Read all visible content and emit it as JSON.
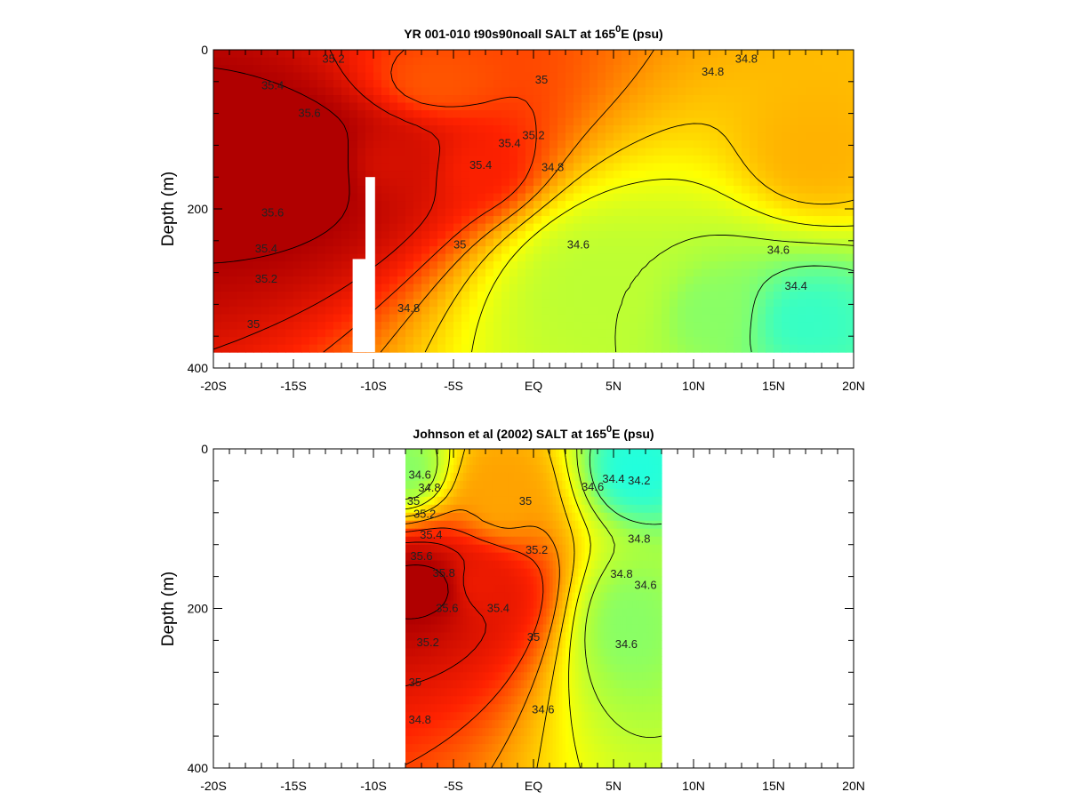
{
  "figure": {
    "colors": {
      "colormap": [
        "#22ffdd",
        "#a6ff44",
        "#ffff00",
        "#ffa000",
        "#ff2200",
        "#b00000"
      ],
      "contour": "#000000",
      "missing": "#ffffff"
    }
  },
  "chart_data": [
    {
      "type": "heatmap",
      "title_main": "YR 001-010 t90s90noall SALT at 165",
      "title_sup": "0",
      "title_end": "E (psu)",
      "xlabel": "",
      "ylabel": "Depth (m)",
      "xlim": [
        -20,
        20
      ],
      "ylim": [
        400,
        0
      ],
      "x_ticks": [
        -20,
        -15,
        -10,
        -5,
        0,
        5,
        10,
        15,
        20
      ],
      "x_tick_labels": [
        "-20S",
        "-15S",
        "-10S",
        "-5S",
        "EQ",
        "5N",
        "10N",
        "15N",
        "20N"
      ],
      "y_ticks": [
        0,
        200,
        400
      ],
      "y_tick_labels": [
        "0",
        "200",
        "400"
      ],
      "colorscale_range_psu": [
        34.2,
        35.8
      ],
      "data_extent": {
        "lat": [
          -20,
          20
        ],
        "depth": [
          0,
          380
        ]
      },
      "missing_regions": [
        {
          "lat": [
            -10.5,
            -9.9
          ],
          "depth": [
            160,
            380
          ]
        },
        {
          "lat": [
            -11.3,
            -10.5
          ],
          "depth": [
            263,
            380
          ]
        }
      ],
      "salinity_features": [
        {
          "lat": -15,
          "depth": 140,
          "value": 35.9,
          "radius": [
            8,
            95
          ]
        },
        {
          "lat": -9,
          "depth": 140,
          "value": 35.65,
          "radius": [
            5,
            70
          ]
        },
        {
          "lat": -3.5,
          "depth": 150,
          "value": 35.5,
          "radius": [
            3.5,
            55
          ]
        },
        {
          "lat": -6,
          "depth": 40,
          "value": 35.35,
          "radius": [
            5,
            60
          ]
        },
        {
          "lat": 17.5,
          "depth": 130,
          "value": 35.1,
          "radius": [
            3.5,
            60
          ]
        },
        {
          "lat": 17,
          "depth": 340,
          "value": 34.25,
          "radius": [
            4,
            60
          ]
        },
        {
          "lat": 11,
          "depth": 330,
          "value": 34.45,
          "radius": [
            4,
            70
          ]
        },
        {
          "lat": 4,
          "depth": 300,
          "value": 34.6,
          "radius": [
            6,
            110
          ]
        }
      ],
      "contour_labels": [
        {
          "text": "35.2",
          "lat": -12.5,
          "depth": 12
        },
        {
          "text": "35.4",
          "lat": -16.3,
          "depth": 45
        },
        {
          "text": "35.6",
          "lat": -14,
          "depth": 80
        },
        {
          "text": "35.6",
          "lat": -16.3,
          "depth": 205
        },
        {
          "text": "35.4",
          "lat": -16.7,
          "depth": 250
        },
        {
          "text": "35.2",
          "lat": -16.7,
          "depth": 288
        },
        {
          "text": "35",
          "lat": -17.5,
          "depth": 345
        },
        {
          "text": "34.8",
          "lat": -7.8,
          "depth": 325
        },
        {
          "text": "35",
          "lat": -4.6,
          "depth": 245
        },
        {
          "text": "35.4",
          "lat": -3.3,
          "depth": 145
        },
        {
          "text": "35.4",
          "lat": -1.5,
          "depth": 118
        },
        {
          "text": "35.2",
          "lat": 0,
          "depth": 108
        },
        {
          "text": "35",
          "lat": 0.5,
          "depth": 38
        },
        {
          "text": "34.8",
          "lat": 1.2,
          "depth": 148
        },
        {
          "text": "34.6",
          "lat": 2.8,
          "depth": 245
        },
        {
          "text": "34.8",
          "lat": 11.2,
          "depth": 28
        },
        {
          "text": "34.8",
          "lat": 13.3,
          "depth": 12
        },
        {
          "text": "34.6",
          "lat": 15.3,
          "depth": 252
        },
        {
          "text": "34.4",
          "lat": 16.4,
          "depth": 297
        }
      ]
    },
    {
      "type": "heatmap",
      "title_main": "Johnson et al (2002) SALT at 165",
      "title_sup": "0",
      "title_end": "E (psu)",
      "xlabel": "",
      "ylabel": "Depth (m)",
      "xlim": [
        -20,
        20
      ],
      "ylim": [
        400,
        0
      ],
      "x_ticks": [
        -20,
        -15,
        -10,
        -5,
        0,
        5,
        10,
        15,
        20
      ],
      "x_tick_labels": [
        "-20S",
        "-15S",
        "-10S",
        "-5S",
        "EQ",
        "5N",
        "10N",
        "15N",
        "20N"
      ],
      "y_ticks": [
        0,
        200,
        400
      ],
      "y_tick_labels": [
        "0",
        "200",
        "400"
      ],
      "colorscale_range_psu": [
        34.2,
        35.8
      ],
      "data_extent": {
        "lat": [
          -8,
          8
        ],
        "depth": [
          0,
          400
        ]
      },
      "missing_regions": [],
      "salinity_features": [
        {
          "lat": -6.5,
          "depth": 175,
          "value": 35.85,
          "radius": [
            4.5,
            60
          ]
        },
        {
          "lat": -3.5,
          "depth": 170,
          "value": 35.55,
          "radius": [
            3.5,
            65
          ]
        },
        {
          "lat": -2,
          "depth": 60,
          "value": 35.15,
          "radius": [
            3,
            70
          ]
        },
        {
          "lat": 6.5,
          "depth": 25,
          "value": 34.2,
          "radius": [
            2.8,
            55
          ]
        },
        {
          "lat": 6,
          "depth": 220,
          "value": 34.45,
          "radius": [
            3,
            80
          ]
        },
        {
          "lat": -8,
          "depth": 25,
          "value": 34.45,
          "radius": [
            2.5,
            50
          ]
        }
      ],
      "contour_labels": [
        {
          "text": "34.6",
          "lat": -7.1,
          "depth": 33
        },
        {
          "text": "34.8",
          "lat": -6.5,
          "depth": 49
        },
        {
          "text": "35",
          "lat": -7.5,
          "depth": 66
        },
        {
          "text": "35.2",
          "lat": -6.8,
          "depth": 82
        },
        {
          "text": "35.4",
          "lat": -6.4,
          "depth": 108
        },
        {
          "text": "35.6",
          "lat": -7,
          "depth": 135
        },
        {
          "text": "35.8",
          "lat": -5.6,
          "depth": 156
        },
        {
          "text": "35.6",
          "lat": -5.4,
          "depth": 200
        },
        {
          "text": "35.4",
          "lat": -2.2,
          "depth": 200
        },
        {
          "text": "35.2",
          "lat": -6.6,
          "depth": 243
        },
        {
          "text": "35",
          "lat": -7.4,
          "depth": 293
        },
        {
          "text": "34.8",
          "lat": -7.1,
          "depth": 340
        },
        {
          "text": "34.6",
          "lat": 0.6,
          "depth": 327
        },
        {
          "text": "35",
          "lat": 0,
          "depth": 236
        },
        {
          "text": "35.2",
          "lat": 0.2,
          "depth": 127
        },
        {
          "text": "35",
          "lat": -0.5,
          "depth": 66
        },
        {
          "text": "34.6",
          "lat": 3.7,
          "depth": 48
        },
        {
          "text": "34.4",
          "lat": 5,
          "depth": 38
        },
        {
          "text": "34.2",
          "lat": 6.6,
          "depth": 40
        },
        {
          "text": "34.8",
          "lat": 6.6,
          "depth": 113
        },
        {
          "text": "34.8",
          "lat": 5.5,
          "depth": 157
        },
        {
          "text": "34.6",
          "lat": 7,
          "depth": 171
        },
        {
          "text": "34.6",
          "lat": 5.8,
          "depth": 245
        }
      ]
    }
  ]
}
